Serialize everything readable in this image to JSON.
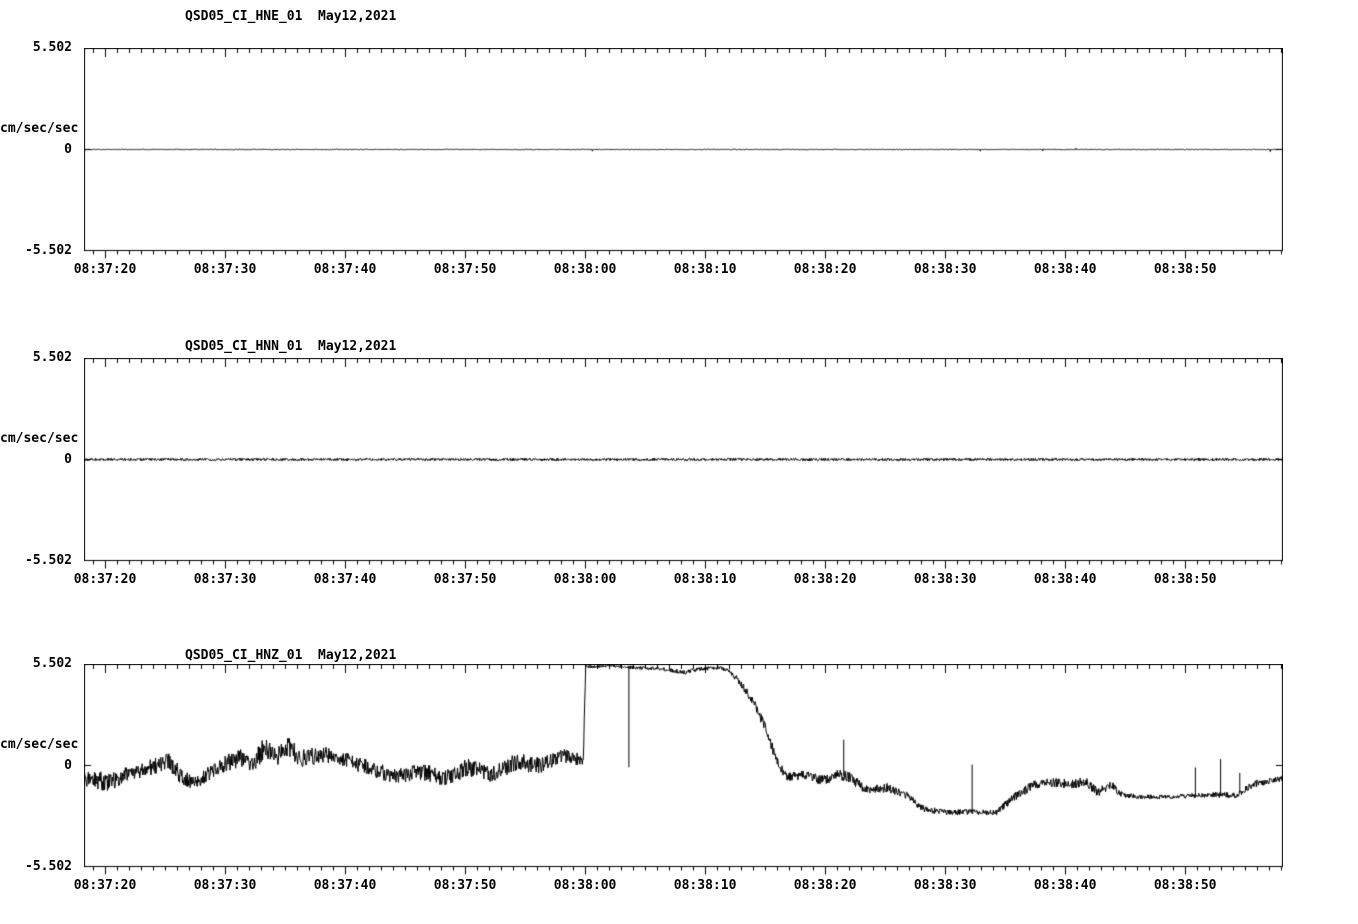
{
  "page": {
    "background": "#ffffff",
    "trace_color": "#000000"
  },
  "axis": {
    "y_max_label": "5.502",
    "y_zero_label": "0",
    "y_min_label": "-5.502",
    "y_unit_label": "cm/sec/sec",
    "y_limits": [
      -5.502,
      5.502
    ],
    "x_tick_labels": [
      "08:37:20",
      "08:37:30",
      "08:37:40",
      "08:37:50",
      "08:38:00",
      "08:38:10",
      "08:38:20",
      "08:38:30",
      "08:38:40",
      "08:38:50"
    ],
    "x_start_time": "08:37:18",
    "x_end_time": "08:38:58",
    "x_major_tick_seconds": 10,
    "x_minor_tick_seconds": 1
  },
  "chart_data": [
    {
      "type": "line",
      "title": "QSD05_CI_HNE_01  May12,2021",
      "ylabel": "cm/sec/sec",
      "ylim": [
        -5.502,
        5.502
      ],
      "x_span_seconds": 99.9,
      "envelope": [
        [
          0,
          0,
          0.02
        ],
        [
          99.9,
          0,
          0.02
        ]
      ],
      "speck_probability": 0.006,
      "speck_multiplier": 6,
      "spikes": []
    },
    {
      "type": "line",
      "title": "QSD05_CI_HNN_01  May12,2021",
      "ylabel": "cm/sec/sec",
      "ylim": [
        -5.502,
        5.502
      ],
      "x_span_seconds": 99.9,
      "envelope": [
        [
          0,
          0,
          0.07
        ],
        [
          99.9,
          0,
          0.07
        ]
      ],
      "speck_probability": 0,
      "speck_multiplier": 1,
      "spikes": []
    },
    {
      "type": "line",
      "title": "QSD05_CI_HNZ_01  May12,2021",
      "ylabel": "cm/sec/sec",
      "ylim": [
        -5.502,
        5.502
      ],
      "x_span_seconds": 99.9,
      "envelope": [
        [
          0,
          -0.7,
          0.5
        ],
        [
          2,
          -0.9,
          0.5
        ],
        [
          4,
          -0.4,
          0.4
        ],
        [
          6,
          0.0,
          0.45
        ],
        [
          7,
          0.3,
          0.45
        ],
        [
          8,
          -0.5,
          0.45
        ],
        [
          9,
          -1.0,
          0.4
        ],
        [
          11,
          -0.2,
          0.4
        ],
        [
          13,
          0.5,
          0.55
        ],
        [
          14,
          0.1,
          0.5
        ],
        [
          15,
          0.9,
          0.6
        ],
        [
          16,
          0.5,
          0.55
        ],
        [
          17,
          1.1,
          0.6
        ],
        [
          18,
          0.4,
          0.5
        ],
        [
          20,
          0.6,
          0.45
        ],
        [
          22,
          0.3,
          0.4
        ],
        [
          24,
          -0.2,
          0.45
        ],
        [
          26,
          -0.6,
          0.4
        ],
        [
          28,
          -0.3,
          0.5
        ],
        [
          30,
          -0.7,
          0.4
        ],
        [
          32,
          -0.1,
          0.5
        ],
        [
          34,
          -0.5,
          0.4
        ],
        [
          36,
          0.2,
          0.5
        ],
        [
          38,
          0.0,
          0.45
        ],
        [
          40,
          0.5,
          0.4
        ],
        [
          41.6,
          0.3,
          0.3
        ],
        [
          41.8,
          5.35,
          0.08
        ],
        [
          44,
          5.4,
          0.07
        ],
        [
          46,
          5.3,
          0.09
        ],
        [
          48,
          5.25,
          0.1
        ],
        [
          50,
          5.05,
          0.12
        ],
        [
          51.5,
          5.25,
          0.1
        ],
        [
          53,
          5.3,
          0.1
        ],
        [
          53.8,
          5.1,
          0.12
        ],
        [
          54.8,
          4.4,
          0.2
        ],
        [
          55.8,
          3.4,
          0.25
        ],
        [
          56.8,
          2.0,
          0.3
        ],
        [
          57.6,
          0.5,
          0.3
        ],
        [
          58.5,
          -0.6,
          0.25
        ],
        [
          60,
          -0.5,
          0.25
        ],
        [
          61.5,
          -0.8,
          0.25
        ],
        [
          63,
          -0.5,
          0.3
        ],
        [
          64,
          -0.7,
          0.3
        ],
        [
          65,
          -1.3,
          0.25
        ],
        [
          67,
          -1.2,
          0.25
        ],
        [
          68.5,
          -1.6,
          0.2
        ],
        [
          70,
          -2.4,
          0.2
        ],
        [
          72,
          -2.55,
          0.15
        ],
        [
          74,
          -2.5,
          0.15
        ],
        [
          76,
          -2.55,
          0.15
        ],
        [
          77.5,
          -1.7,
          0.25
        ],
        [
          79,
          -1.1,
          0.25
        ],
        [
          80.5,
          -0.9,
          0.25
        ],
        [
          82,
          -1.0,
          0.25
        ],
        [
          83.5,
          -0.9,
          0.3
        ],
        [
          84.5,
          -1.5,
          0.25
        ],
        [
          85.5,
          -1.0,
          0.25
        ],
        [
          86.5,
          -1.6,
          0.15
        ],
        [
          88,
          -1.7,
          0.12
        ],
        [
          90,
          -1.7,
          0.12
        ],
        [
          92,
          -1.65,
          0.12
        ],
        [
          94,
          -1.6,
          0.15
        ],
        [
          96,
          -1.6,
          0.15
        ],
        [
          97.5,
          -1.0,
          0.2
        ],
        [
          99,
          -0.8,
          0.15
        ],
        [
          99.9,
          -0.7,
          0.15
        ]
      ],
      "speck_probability": 0,
      "speck_multiplier": 1,
      "spikes": [
        [
          45.4,
          -0.1
        ],
        [
          63.3,
          1.4
        ],
        [
          74.0,
          0.05
        ],
        [
          92.6,
          -0.1
        ],
        [
          94.7,
          0.35
        ],
        [
          96.3,
          -0.4
        ]
      ]
    }
  ]
}
